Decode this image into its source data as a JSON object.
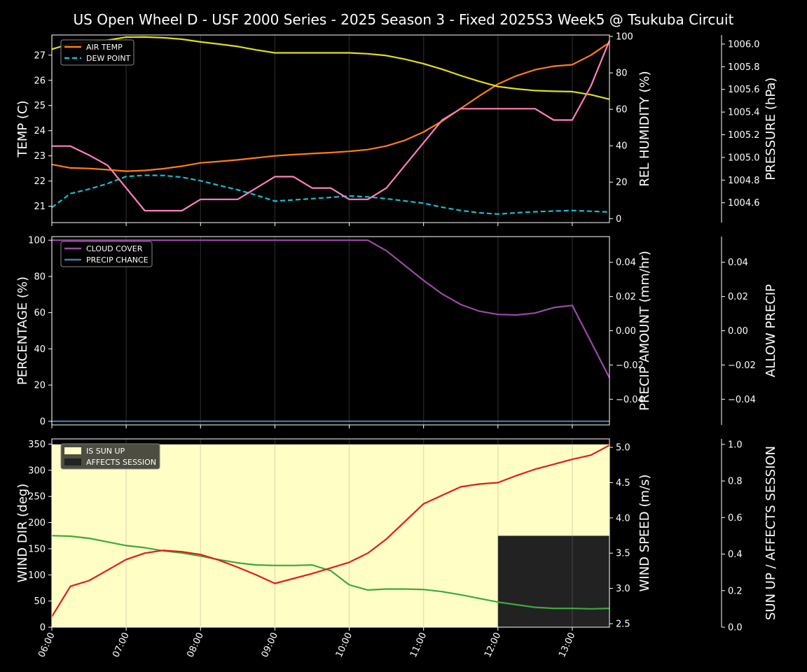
{
  "title": "US Open Wheel D - USF 2000 Series  - 2025 Season 3 - Fixed 2025S3 Week5 @ Tsukuba Circuit",
  "colors": {
    "air_temp": "#ff7f0e",
    "dew_point": "#17becf",
    "humidity": "#dede1c",
    "pressure": "#ff7fbf",
    "cloud": "#9b4aa8",
    "precip_chance": "#3d7fb5",
    "precip_amount_label": "#a0522d",
    "wind_dir": "#3fa83f",
    "wind_speed": "#e01c1c",
    "sun_up": "#ffffc5",
    "affects": "#222222"
  },
  "chart_data": [
    {
      "type": "line",
      "name": "temperature-panel",
      "x": [
        0,
        0.25,
        0.5,
        0.75,
        1,
        1.25,
        1.5,
        1.75,
        2,
        2.25,
        2.5,
        2.75,
        3,
        3.25,
        3.5,
        3.75,
        4,
        4.25,
        4.5,
        4.75,
        5,
        5.25,
        5.5,
        5.75,
        6,
        6.25,
        6.5,
        6.75,
        7,
        7.25,
        7.5
      ],
      "series": [
        {
          "name": "AIR TEMP",
          "axis": "left",
          "values": [
            22.66,
            22.52,
            22.5,
            22.45,
            22.39,
            22.42,
            22.49,
            22.59,
            22.72,
            22.78,
            22.84,
            22.92,
            23.0,
            23.05,
            23.09,
            23.13,
            23.18,
            23.25,
            23.39,
            23.62,
            23.95,
            24.38,
            24.88,
            25.38,
            25.85,
            26.18,
            26.42,
            26.56,
            26.62,
            27.0,
            27.5
          ]
        },
        {
          "name": "DEW POINT",
          "axis": "left",
          "dashed": true,
          "values": [
            20.95,
            21.5,
            21.68,
            21.9,
            22.18,
            22.23,
            22.22,
            22.15,
            22.01,
            21.83,
            21.65,
            21.44,
            21.2,
            21.25,
            21.3,
            21.35,
            21.41,
            21.37,
            21.3,
            21.21,
            21.12,
            20.96,
            20.83,
            20.74,
            20.69,
            20.74,
            20.78,
            20.81,
            20.83,
            20.8,
            20.77
          ]
        },
        {
          "name": "REL HUMIDITY",
          "axis": "right1",
          "values": [
            93,
            96,
            97,
            98,
            99.6,
            99.7,
            99.3,
            98.5,
            97,
            95.8,
            94.5,
            92.6,
            91,
            91,
            91,
            91,
            91,
            90.5,
            89.5,
            87.5,
            85,
            82,
            78.5,
            75.3,
            72.5,
            71.2,
            70.3,
            69.9,
            69.7,
            68,
            65.5
          ]
        },
        {
          "name": "PRESSURE",
          "axis": "right2",
          "values": [
            1005.1,
            1005.1,
            1005.02,
            1004.93,
            1004.73,
            1004.53,
            1004.53,
            1004.53,
            1004.63,
            1004.63,
            1004.63,
            1004.73,
            1004.83,
            1004.83,
            1004.73,
            1004.73,
            1004.63,
            1004.63,
            1004.73,
            1004.93,
            1005.13,
            1005.33,
            1005.43,
            1005.43,
            1005.43,
            1005.43,
            1005.43,
            1005.33,
            1005.33,
            1005.63,
            1006.03
          ]
        }
      ],
      "ylabel": "TEMP (C)",
      "ylim": [
        20.35,
        27.8
      ],
      "yticks": [
        21,
        22,
        23,
        24,
        25,
        26,
        27
      ],
      "y2label": "REL HUMIDITY (%)",
      "y2lim": [
        -2.2,
        100.8
      ],
      "y2ticks": [
        0,
        20,
        40,
        60,
        80,
        100
      ],
      "y3label": "PRESSURE (hPa)",
      "y3lim": [
        1004.425,
        1006.08
      ],
      "y3ticks": [
        "1004.6",
        "1004.8",
        "1005.0",
        "1005.2",
        "1005.4",
        "1005.6",
        "1005.8",
        "1006.0"
      ],
      "legend": [
        "AIR TEMP",
        "DEW POINT"
      ],
      "legend_position": "top-left"
    },
    {
      "type": "line",
      "name": "cloud-panel",
      "x": [
        0,
        0.25,
        0.5,
        0.75,
        1,
        1.25,
        1.5,
        1.75,
        2,
        2.25,
        2.5,
        2.75,
        3,
        3.25,
        3.5,
        3.75,
        4,
        4.25,
        4.5,
        4.75,
        5,
        5.25,
        5.5,
        5.75,
        6,
        6.25,
        6.5,
        6.75,
        7,
        7.25,
        7.5
      ],
      "series": [
        {
          "name": "CLOUD COVER",
          "values": [
            100,
            100,
            100,
            100,
            100,
            100,
            100,
            100,
            100,
            100,
            100,
            100,
            100,
            100,
            100,
            100,
            100,
            100,
            94.2,
            86,
            77.8,
            70.3,
            64.5,
            60.8,
            59,
            58.7,
            59.8,
            62.8,
            64,
            44,
            24
          ]
        },
        {
          "name": "PRECIP CHANCE",
          "values": [
            0,
            0,
            0,
            0,
            0,
            0,
            0,
            0,
            0,
            0,
            0,
            0,
            0,
            0,
            0,
            0,
            0,
            0,
            0,
            0,
            0,
            0,
            0,
            0,
            0,
            0,
            0,
            0,
            0,
            0,
            0
          ]
        }
      ],
      "ylabel": "PERCENTAGE (%)",
      "ylim": [
        -2,
        102
      ],
      "yticks": [
        0,
        20,
        40,
        60,
        80,
        100
      ],
      "y2label": "PRECIP AMOUNT (mm/hr)",
      "y2lim": [
        -0.055,
        0.055
      ],
      "y2ticks": [
        "−0.04",
        "−0.02",
        "0.00",
        "0.02",
        "0.04"
      ],
      "y3label": "ALLOW PRECIP",
      "y3lim": [
        -0.055,
        0.055
      ],
      "y3ticks": [
        "−0.04",
        "−0.02",
        "0.00",
        "0.02",
        "0.04"
      ],
      "legend": [
        "CLOUD COVER",
        "PRECIP CHANCE"
      ],
      "legend_position": "top-left"
    },
    {
      "type": "line",
      "name": "wind-panel",
      "x": [
        0,
        0.25,
        0.5,
        0.75,
        1,
        1.25,
        1.5,
        1.75,
        2,
        2.25,
        2.5,
        2.75,
        3,
        3.25,
        3.5,
        3.75,
        4,
        4.25,
        4.5,
        4.75,
        5,
        5.25,
        5.5,
        5.75,
        6,
        6.25,
        6.5,
        6.75,
        7,
        7.25,
        7.5
      ],
      "series": [
        {
          "name": "WIND DIR",
          "axis": "left",
          "values": [
            175,
            174,
            170,
            163,
            156,
            152,
            146,
            142,
            136,
            129,
            123,
            119,
            118,
            118,
            119,
            108,
            81,
            71,
            73,
            73,
            72,
            68,
            62,
            55,
            48,
            43,
            38,
            36,
            36,
            35,
            36
          ]
        },
        {
          "name": "WIND SPEED",
          "axis": "right1",
          "values": [
            2.6,
            3.03,
            3.11,
            3.26,
            3.41,
            3.5,
            3.54,
            3.52,
            3.48,
            3.4,
            3.3,
            3.19,
            3.07,
            3.14,
            3.21,
            3.29,
            3.37,
            3.5,
            3.7,
            3.95,
            4.2,
            4.32,
            4.44,
            4.48,
            4.5,
            4.6,
            4.69,
            4.76,
            4.83,
            4.89,
            5.03
          ]
        }
      ],
      "bands": [
        {
          "name": "IS SUN UP",
          "from": 0,
          "to": 7.5,
          "value": 1
        },
        {
          "name": "AFFECTS SESSION",
          "from": 6,
          "to": 7.5,
          "value": 0.5
        }
      ],
      "ylabel": "WIND DIR (deg)",
      "ylim": [
        0,
        360
      ],
      "yticks": [
        0,
        50,
        100,
        150,
        200,
        250,
        300,
        350
      ],
      "y2label": "WIND SPEED (m/s)",
      "y2lim": [
        2.45,
        5.12
      ],
      "y2ticks": [
        "2.5",
        "3.0",
        "3.5",
        "4.0",
        "4.5",
        "5.0"
      ],
      "y3label": "SUN UP / AFFECTS SESSION",
      "y3lim": [
        0,
        1.03
      ],
      "y3ticks": [
        "0.0",
        "0.2",
        "0.4",
        "0.6",
        "0.8",
        "1.0"
      ],
      "legend": [
        "IS SUN UP",
        "AFFECTS SESSION"
      ],
      "legend_position": "top-left"
    }
  ],
  "xticks": [
    "06:00",
    "07:00",
    "08:00",
    "09:00",
    "10:00",
    "11:00",
    "12:00",
    "13:00"
  ],
  "xlim": [
    0,
    7.5
  ]
}
